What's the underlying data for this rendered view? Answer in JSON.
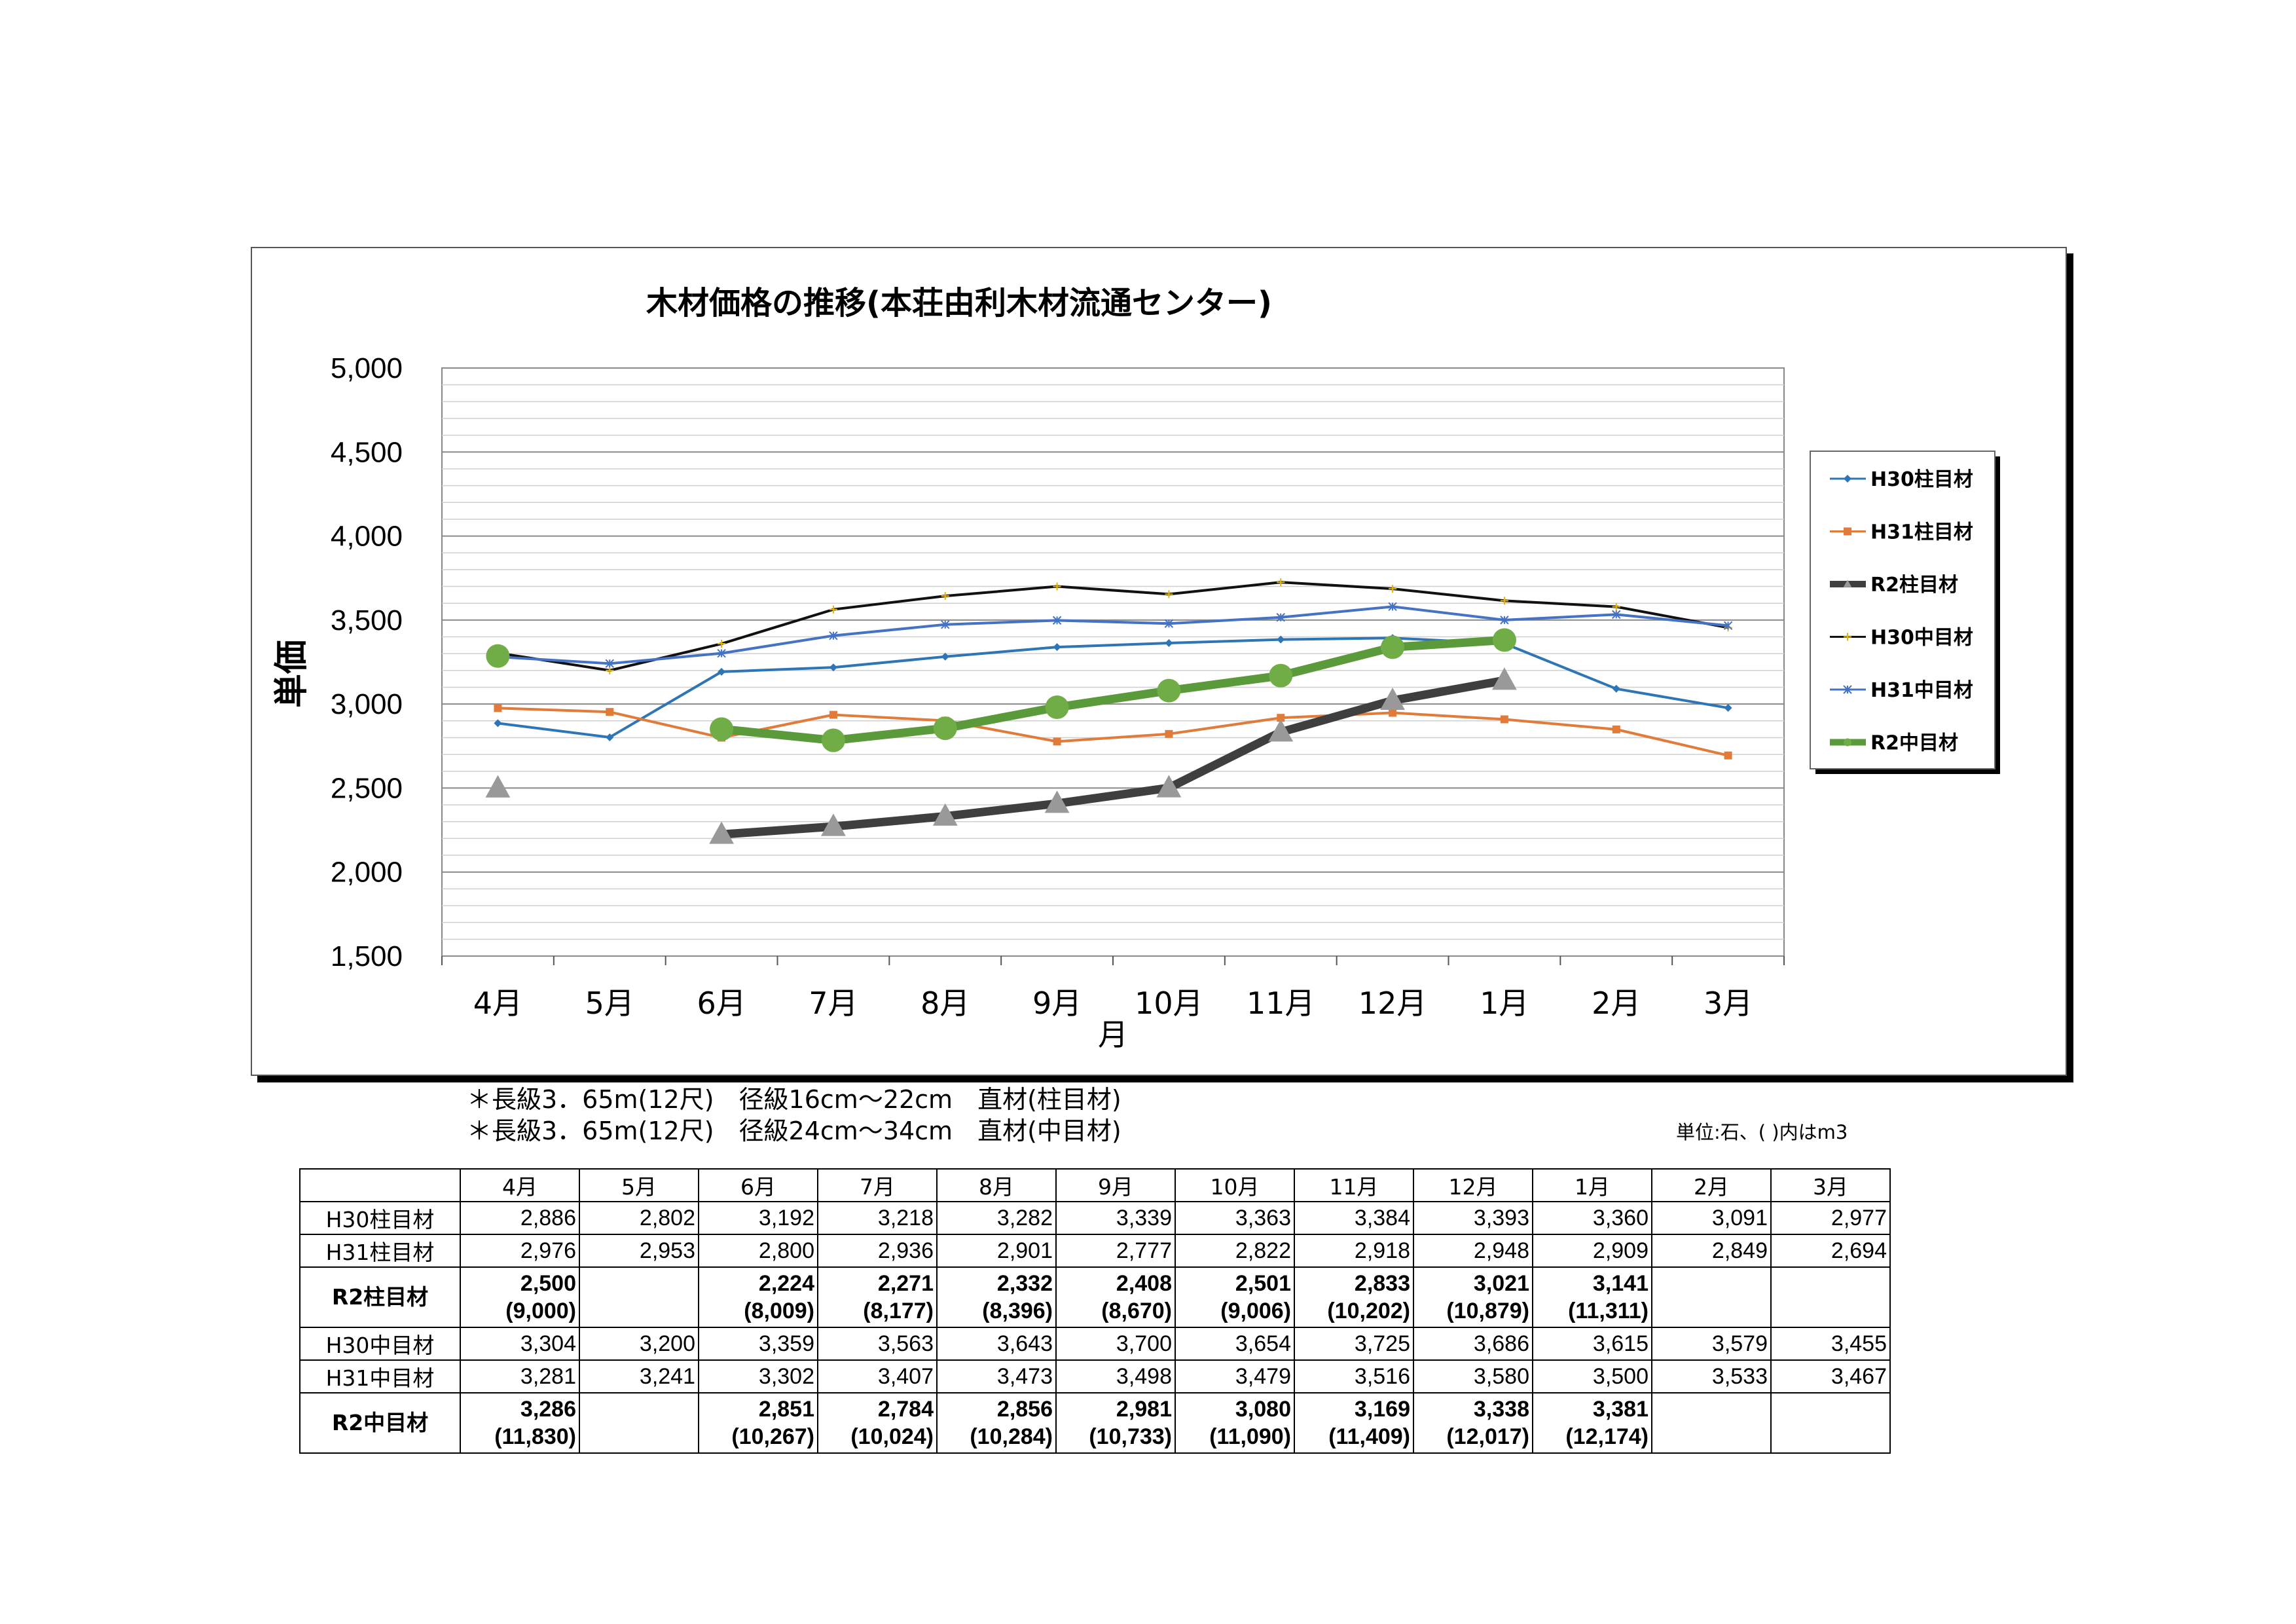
{
  "chart_data": {
    "type": "line",
    "title": "木材価格の推移(本荘由利木材流通センター)",
    "xlabel": "月",
    "ylabel": "単価",
    "ylim": [
      1500,
      5000
    ],
    "yticks": [
      "1,500",
      "2,000",
      "2,500",
      "3,000",
      "3,500",
      "4,000",
      "4,500",
      "5,000"
    ],
    "ytick_values": [
      1500,
      2000,
      2500,
      3000,
      3500,
      4000,
      4500,
      5000
    ],
    "categories": [
      "4月",
      "5月",
      "6月",
      "7月",
      "8月",
      "9月",
      "10月",
      "11月",
      "12月",
      "1月",
      "2月",
      "3月"
    ],
    "grid": true,
    "legend_position": "right",
    "series": [
      {
        "name": "H30柱目材",
        "color": "#2E75B6",
        "marker": "diamond",
        "width": "thin",
        "values": [
          2886,
          2802,
          3192,
          3218,
          3282,
          3339,
          3363,
          3384,
          3393,
          3360,
          3091,
          2977
        ]
      },
      {
        "name": "H31柱目材",
        "color": "#E07B39",
        "marker": "square",
        "width": "thin",
        "values": [
          2976,
          2953,
          2800,
          2936,
          2901,
          2777,
          2822,
          2918,
          2948,
          2909,
          2849,
          2694
        ]
      },
      {
        "name": "R2柱目材",
        "color": "#3F3F3F",
        "marker": "triangle",
        "marker_color": "#999999",
        "width": "thick",
        "values": [
          2500,
          null,
          2224,
          2271,
          2332,
          2408,
          2501,
          2833,
          3021,
          3141,
          null,
          null
        ]
      },
      {
        "name": "H30中目材",
        "color": "#111111",
        "marker": "plus",
        "marker_color": "#E6B400",
        "width": "thin",
        "values": [
          3304,
          3200,
          3359,
          3563,
          3643,
          3700,
          3654,
          3725,
          3686,
          3615,
          3579,
          3455
        ]
      },
      {
        "name": "H31中目材",
        "color": "#4472C4",
        "marker": "star",
        "width": "thin",
        "values": [
          3281,
          3241,
          3302,
          3407,
          3473,
          3498,
          3479,
          3516,
          3580,
          3500,
          3533,
          3467
        ]
      },
      {
        "name": "R2中目材",
        "color": "#5B9A3A",
        "marker": "circle",
        "marker_color": "#70AD47",
        "width": "thick",
        "values": [
          3286,
          null,
          2851,
          2784,
          2856,
          2981,
          3080,
          3169,
          3338,
          3381,
          null,
          null
        ]
      }
    ]
  },
  "notes": [
    "＊長級3．65m(12尺)　径級16cm～22cm　直材(柱目材)",
    "＊長級3．65m(12尺)　径級24cm～34cm　直材(中目材)"
  ],
  "unit_note": "単位:石、( )内はm3",
  "table": {
    "months": [
      "4月",
      "5月",
      "6月",
      "7月",
      "8月",
      "9月",
      "10月",
      "11月",
      "12月",
      "1月",
      "2月",
      "3月"
    ],
    "rows": [
      {
        "label": "H30柱目材",
        "bold": false,
        "values": [
          "2,886",
          "2,802",
          "3,192",
          "3,218",
          "3,282",
          "3,339",
          "3,363",
          "3,384",
          "3,393",
          "3,360",
          "3,091",
          "2,977"
        ],
        "sub": []
      },
      {
        "label": "H31柱目材",
        "bold": false,
        "values": [
          "2,976",
          "2,953",
          "2,800",
          "2,936",
          "2,901",
          "2,777",
          "2,822",
          "2,918",
          "2,948",
          "2,909",
          "2,849",
          "2,694"
        ],
        "sub": []
      },
      {
        "label": "R2柱目材",
        "bold": true,
        "values": [
          "2,500",
          "",
          "2,224",
          "2,271",
          "2,332",
          "2,408",
          "2,501",
          "2,833",
          "3,021",
          "3,141",
          "",
          ""
        ],
        "sub": [
          "(9,000)",
          "",
          "(8,009)",
          "(8,177)",
          "(8,396)",
          "(8,670)",
          "(9,006)",
          "(10,202)",
          "(10,879)",
          "(11,311)",
          "",
          ""
        ]
      },
      {
        "label": "H30中目材",
        "bold": false,
        "values": [
          "3,304",
          "3,200",
          "3,359",
          "3,563",
          "3,643",
          "3,700",
          "3,654",
          "3,725",
          "3,686",
          "3,615",
          "3,579",
          "3,455"
        ],
        "sub": []
      },
      {
        "label": "H31中目材",
        "bold": false,
        "values": [
          "3,281",
          "3,241",
          "3,302",
          "3,407",
          "3,473",
          "3,498",
          "3,479",
          "3,516",
          "3,580",
          "3,500",
          "3,533",
          "3,467"
        ],
        "sub": []
      },
      {
        "label": "R2中目材",
        "bold": true,
        "values": [
          "3,286",
          "",
          "2,851",
          "2,784",
          "2,856",
          "2,981",
          "3,080",
          "3,169",
          "3,338",
          "3,381",
          "",
          ""
        ],
        "sub": [
          "(11,830)",
          "",
          "(10,267)",
          "(10,024)",
          "(10,284)",
          "(10,733)",
          "(11,090)",
          "(11,409)",
          "(12,017)",
          "(12,174)",
          "",
          ""
        ]
      }
    ]
  }
}
